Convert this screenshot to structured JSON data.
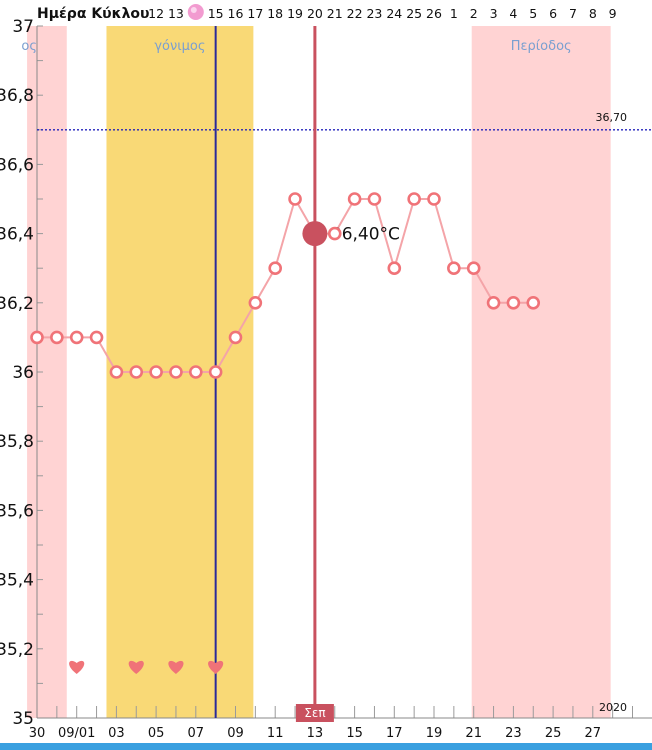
{
  "header": {
    "title": "Ημέρα Κύκλου",
    "cycle_days": [
      "12",
      "13",
      "",
      "15",
      "16",
      "17",
      "18",
      "19",
      "20",
      "21",
      "22",
      "23",
      "24",
      "25",
      "26",
      "1",
      "2",
      "3",
      "4",
      "5",
      "6",
      "7",
      "8",
      "9"
    ]
  },
  "bands": [
    {
      "name": "Περίοδος (start)",
      "label": "ος",
      "color": "#ffd3d3"
    },
    {
      "name": "fertile",
      "label": "γόνιμος",
      "color": "#f9d976"
    },
    {
      "name": "period",
      "label": "Περίοδος",
      "color": "#ffd3d3"
    }
  ],
  "selected": {
    "label": "36,40°C",
    "month_label": "Σεπ",
    "color": "#c9515f"
  },
  "reference": {
    "label": "36,70",
    "value": 36.7,
    "color": "#2222bb"
  },
  "ovulation_line_color": "#2a2a9a",
  "year_label": "2020",
  "colors": {
    "line": "#f4a4a8",
    "marker": "#f07378",
    "heart": "#f07378",
    "bottom_bar": "#3aa0e0"
  },
  "icons": {
    "heart": "heart-icon",
    "ovulation": "pink-egg-icon"
  },
  "chart_data": {
    "type": "line",
    "title": "",
    "xlabel": "",
    "ylabel": "",
    "ylim": [
      35,
      37
    ],
    "yticks": [
      "35",
      "35,2",
      "35,4",
      "35,6",
      "35,8",
      "36",
      "36,2",
      "36,4",
      "36,6",
      "36,8",
      "37"
    ],
    "x_tick_labels": [
      "30",
      "09/01",
      "03",
      "05",
      "07",
      "09",
      "11",
      "13",
      "15",
      "17",
      "19",
      "21",
      "23",
      "25",
      "27"
    ],
    "series": [
      {
        "values": [
          36.1,
          36.1,
          36.1,
          36.1,
          36.0,
          36.0,
          36.0,
          36.0,
          36.0,
          36.0,
          36.1,
          36.2,
          36.3,
          36.5,
          36.4,
          36.4,
          36.5,
          36.5,
          36.3,
          36.5,
          36.5,
          36.3,
          36.3,
          36.2,
          36.2,
          36.2
        ]
      }
    ],
    "hearts_on_days": [
      2,
      5,
      7,
      9
    ],
    "selected_day": 14,
    "reference_value": 36.7
  }
}
